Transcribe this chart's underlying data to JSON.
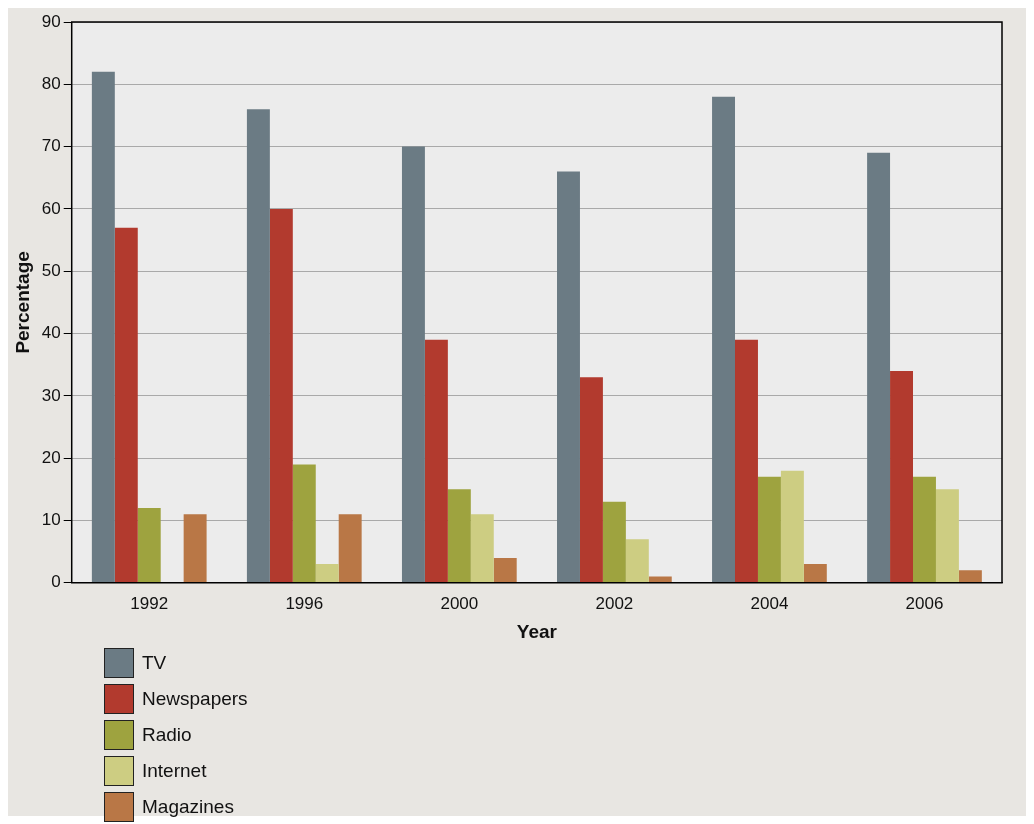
{
  "chart_data": {
    "type": "bar",
    "xlabel": "Year",
    "ylabel": "Percentage",
    "categories": [
      "1992",
      "1996",
      "2000",
      "2002",
      "2004",
      "2006"
    ],
    "series": [
      {
        "name": "TV",
        "color": "#6b7b84",
        "values": [
          82,
          76,
          70,
          66,
          78,
          69
        ]
      },
      {
        "name": "Newspapers",
        "color": "#b23a2e",
        "values": [
          57,
          60,
          39,
          33,
          39,
          34
        ]
      },
      {
        "name": "Radio",
        "color": "#9ea33f",
        "values": [
          12,
          19,
          15,
          13,
          17,
          17
        ]
      },
      {
        "name": "Internet",
        "color": "#cdcd82",
        "values": [
          null,
          3,
          11,
          7,
          18,
          15
        ]
      },
      {
        "name": "Magazines",
        "color": "#b97746",
        "values": [
          11,
          11,
          4,
          1,
          3,
          2
        ]
      }
    ],
    "ylim": [
      0,
      90
    ],
    "yticks": [
      0,
      10,
      20,
      30,
      40,
      50,
      60,
      70,
      80,
      90
    ],
    "grid": "y",
    "legend": "bottom left"
  }
}
